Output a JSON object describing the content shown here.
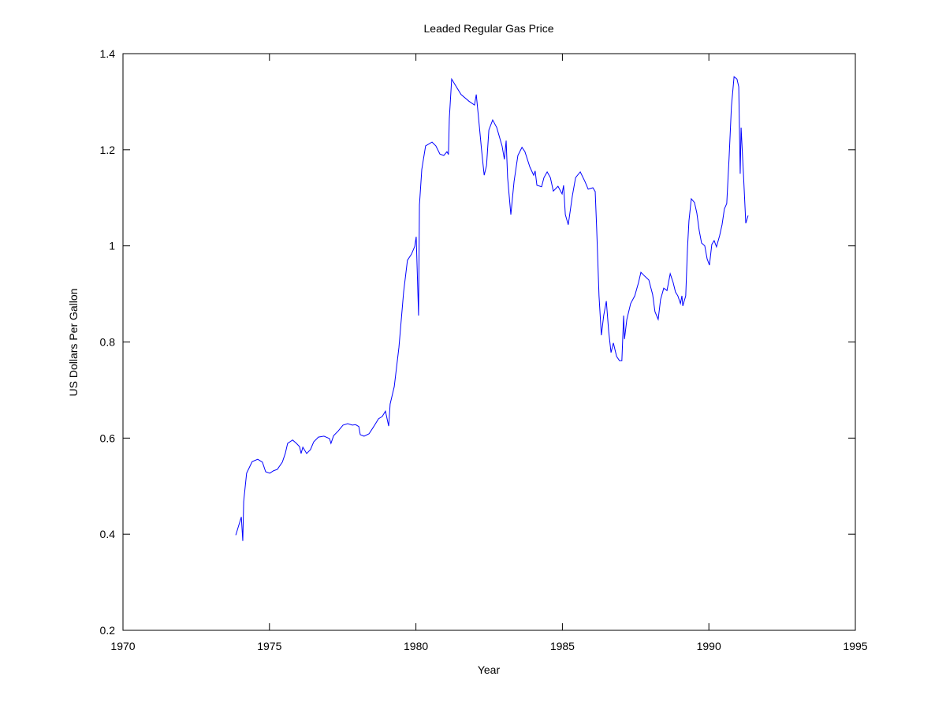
{
  "chart_data": {
    "type": "line",
    "title": "Leaded Regular Gas Price",
    "x_label": "Year",
    "y_label": "US Dollars Per Gallon",
    "xlim": [
      1970,
      1995
    ],
    "xticks": [
      1970,
      1975,
      1980,
      1985,
      1990,
      1995
    ],
    "ylim": [
      0.2,
      1.4
    ],
    "yticks": [
      0.2,
      0.4,
      0.6,
      0.8,
      1,
      1.2,
      1.4
    ],
    "grid": false,
    "series": [
      {
        "color": "#0000ff",
        "x": [
          1973.85,
          1974.04,
          1974.09,
          1974.12,
          1974.22,
          1974.41,
          1974.6,
          1974.76,
          1974.87,
          1975.01,
          1975.14,
          1975.27,
          1975.44,
          1975.54,
          1975.62,
          1975.79,
          1975.92,
          1976.03,
          1976.08,
          1976.14,
          1976.27,
          1976.4,
          1976.51,
          1976.67,
          1976.86,
          1977.05,
          1977.1,
          1977.19,
          1977.35,
          1977.51,
          1977.67,
          1977.83,
          1977.94,
          1978.05,
          1978.1,
          1978.23,
          1978.4,
          1978.56,
          1978.72,
          1978.85,
          1978.96,
          1979.07,
          1979.12,
          1979.26,
          1979.42,
          1979.58,
          1979.71,
          1979.85,
          1979.96,
          1980.01,
          1980.09,
          1980.12,
          1980.2,
          1980.33,
          1980.55,
          1980.68,
          1980.82,
          1980.95,
          1981.06,
          1981.11,
          1981.14,
          1981.22,
          1981.33,
          1981.54,
          1981.81,
          1982,
          1982.06,
          1982.14,
          1982.24,
          1982.33,
          1982.41,
          1982.49,
          1982.62,
          1982.76,
          1982.94,
          1983.02,
          1983.08,
          1983.13,
          1983.24,
          1983.35,
          1983.48,
          1983.62,
          1983.72,
          1983.89,
          1984.02,
          1984.07,
          1984.13,
          1984.29,
          1984.37,
          1984.48,
          1984.59,
          1984.69,
          1984.85,
          1984.99,
          1985.04,
          1985.1,
          1985.2,
          1985.34,
          1985.45,
          1985.61,
          1985.77,
          1985.88,
          1986.04,
          1986.12,
          1986.17,
          1986.25,
          1986.33,
          1986.41,
          1986.5,
          1986.58,
          1986.66,
          1986.74,
          1986.85,
          1986.95,
          1987.03,
          1987.09,
          1987.12,
          1987.2,
          1987.33,
          1987.47,
          1987.6,
          1987.68,
          1987.81,
          1987.95,
          1988.08,
          1988.16,
          1988.27,
          1988.35,
          1988.46,
          1988.57,
          1988.68,
          1988.78,
          1988.86,
          1988.94,
          1989.03,
          1989.08,
          1989.11,
          1989.21,
          1989.27,
          1989.32,
          1989.4,
          1989.51,
          1989.59,
          1989.67,
          1989.75,
          1989.86,
          1989.94,
          1990.02,
          1990.1,
          1990.18,
          1990.26,
          1990.37,
          1990.45,
          1990.53,
          1990.61,
          1990.69,
          1990.77,
          1990.86,
          1990.96,
          1991.02,
          1991.07,
          1991.1,
          1991.18,
          1991.26,
          1991.34
        ],
        "values": [
          0.398,
          0.436,
          0.386,
          0.468,
          0.527,
          0.551,
          0.556,
          0.55,
          0.53,
          0.527,
          0.532,
          0.535,
          0.55,
          0.568,
          0.589,
          0.596,
          0.589,
          0.582,
          0.568,
          0.581,
          0.568,
          0.576,
          0.592,
          0.602,
          0.604,
          0.599,
          0.589,
          0.605,
          0.615,
          0.627,
          0.63,
          0.627,
          0.628,
          0.624,
          0.607,
          0.604,
          0.609,
          0.624,
          0.64,
          0.645,
          0.656,
          0.625,
          0.671,
          0.707,
          0.789,
          0.904,
          0.97,
          0.983,
          0.999,
          1.019,
          0.855,
          1.085,
          1.159,
          1.208,
          1.216,
          1.208,
          1.191,
          1.188,
          1.196,
          1.19,
          1.265,
          1.347,
          1.336,
          1.315,
          1.301,
          1.293,
          1.315,
          1.265,
          1.2,
          1.147,
          1.167,
          1.241,
          1.262,
          1.246,
          1.208,
          1.18,
          1.219,
          1.142,
          1.065,
          1.134,
          1.188,
          1.205,
          1.196,
          1.164,
          1.147,
          1.156,
          1.126,
          1.123,
          1.142,
          1.154,
          1.142,
          1.114,
          1.124,
          1.108,
          1.126,
          1.065,
          1.044,
          1.104,
          1.142,
          1.154,
          1.134,
          1.118,
          1.121,
          1.113,
          1.036,
          0.896,
          0.814,
          0.855,
          0.885,
          0.822,
          0.778,
          0.798,
          0.77,
          0.761,
          0.761,
          0.855,
          0.806,
          0.847,
          0.88,
          0.896,
          0.924,
          0.945,
          0.937,
          0.929,
          0.899,
          0.863,
          0.847,
          0.888,
          0.912,
          0.907,
          0.942,
          0.924,
          0.904,
          0.896,
          0.88,
          0.896,
          0.875,
          0.896,
          0.995,
          1.052,
          1.098,
          1.09,
          1.068,
          1.032,
          1.006,
          1,
          0.973,
          0.96,
          1.003,
          1.011,
          0.998,
          1.022,
          1.044,
          1.077,
          1.088,
          1.183,
          1.29,
          1.352,
          1.347,
          1.331,
          1.15,
          1.246,
          1.15,
          1.047,
          1.063
        ]
      }
    ]
  }
}
